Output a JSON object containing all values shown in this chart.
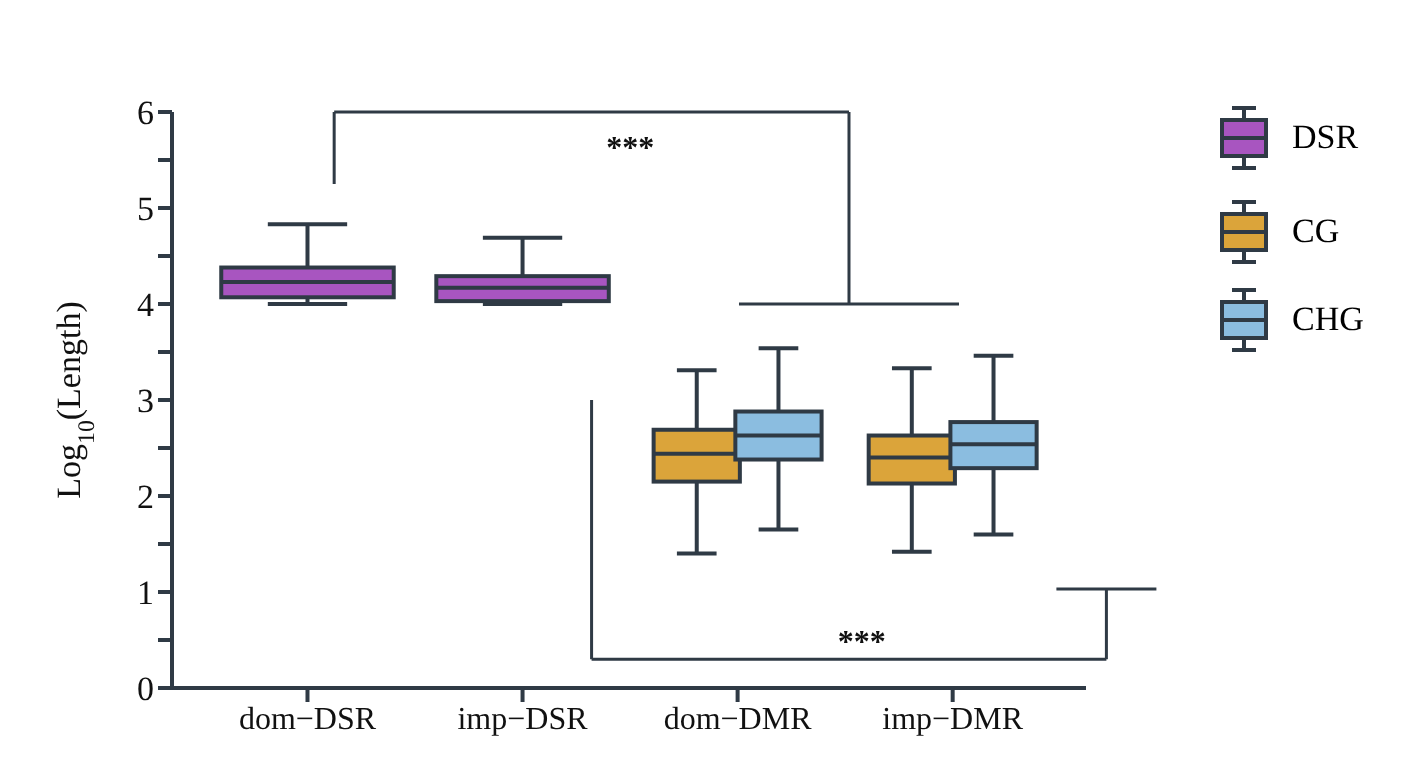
{
  "chart_data": {
    "type": "box",
    "ylabel": "Log$_{10}$(Length)",
    "categories": [
      "dom−DSR",
      "imp−DSR",
      "dom−DMR",
      "imp−DMR"
    ],
    "ylim": [
      0,
      6
    ],
    "yticks": [
      0,
      {
        "value": 0.5,
        "label": null
      },
      1,
      {
        "value": 1.5,
        "label": null
      },
      2,
      {
        "value": 2.5,
        "label": null
      },
      3,
      {
        "value": 3.5,
        "label": null
      },
      4,
      {
        "value": 4.5,
        "label": null
      },
      5,
      {
        "value": 5.5,
        "label": null
      },
      6
    ],
    "grid": false,
    "legend": "top right",
    "series": [
      {
        "name": "DSR",
        "color": "#a855c0",
        "boxes": [
          {
            "low": 4.0,
            "q1": 4.07,
            "median": 4.23,
            "q3": 4.38,
            "high": 4.83
          },
          {
            "low": 4.0,
            "q1": 4.03,
            "median": 4.17,
            "q3": 4.29,
            "high": 4.69
          },
          null,
          null
        ]
      },
      {
        "name": "CG",
        "color": "#dba43a",
        "boxes": [
          null,
          null,
          {
            "low": 1.4,
            "q1": 2.15,
            "median": 2.44,
            "q3": 2.69,
            "high": 3.31
          },
          {
            "low": 1.42,
            "q1": 2.13,
            "median": 2.4,
            "q3": 2.63,
            "high": 3.33
          }
        ]
      },
      {
        "name": "CHG",
        "color": "#8bbde0",
        "boxes": [
          null,
          null,
          {
            "low": 1.65,
            "q1": 2.38,
            "median": 2.63,
            "q3": 2.88,
            "high": 3.54
          },
          {
            "low": 1.6,
            "q1": 2.29,
            "median": 2.54,
            "q3": 2.77,
            "high": 3.46
          }
        ]
      }
    ],
    "annotations": [
      "***",
      "***"
    ]
  }
}
